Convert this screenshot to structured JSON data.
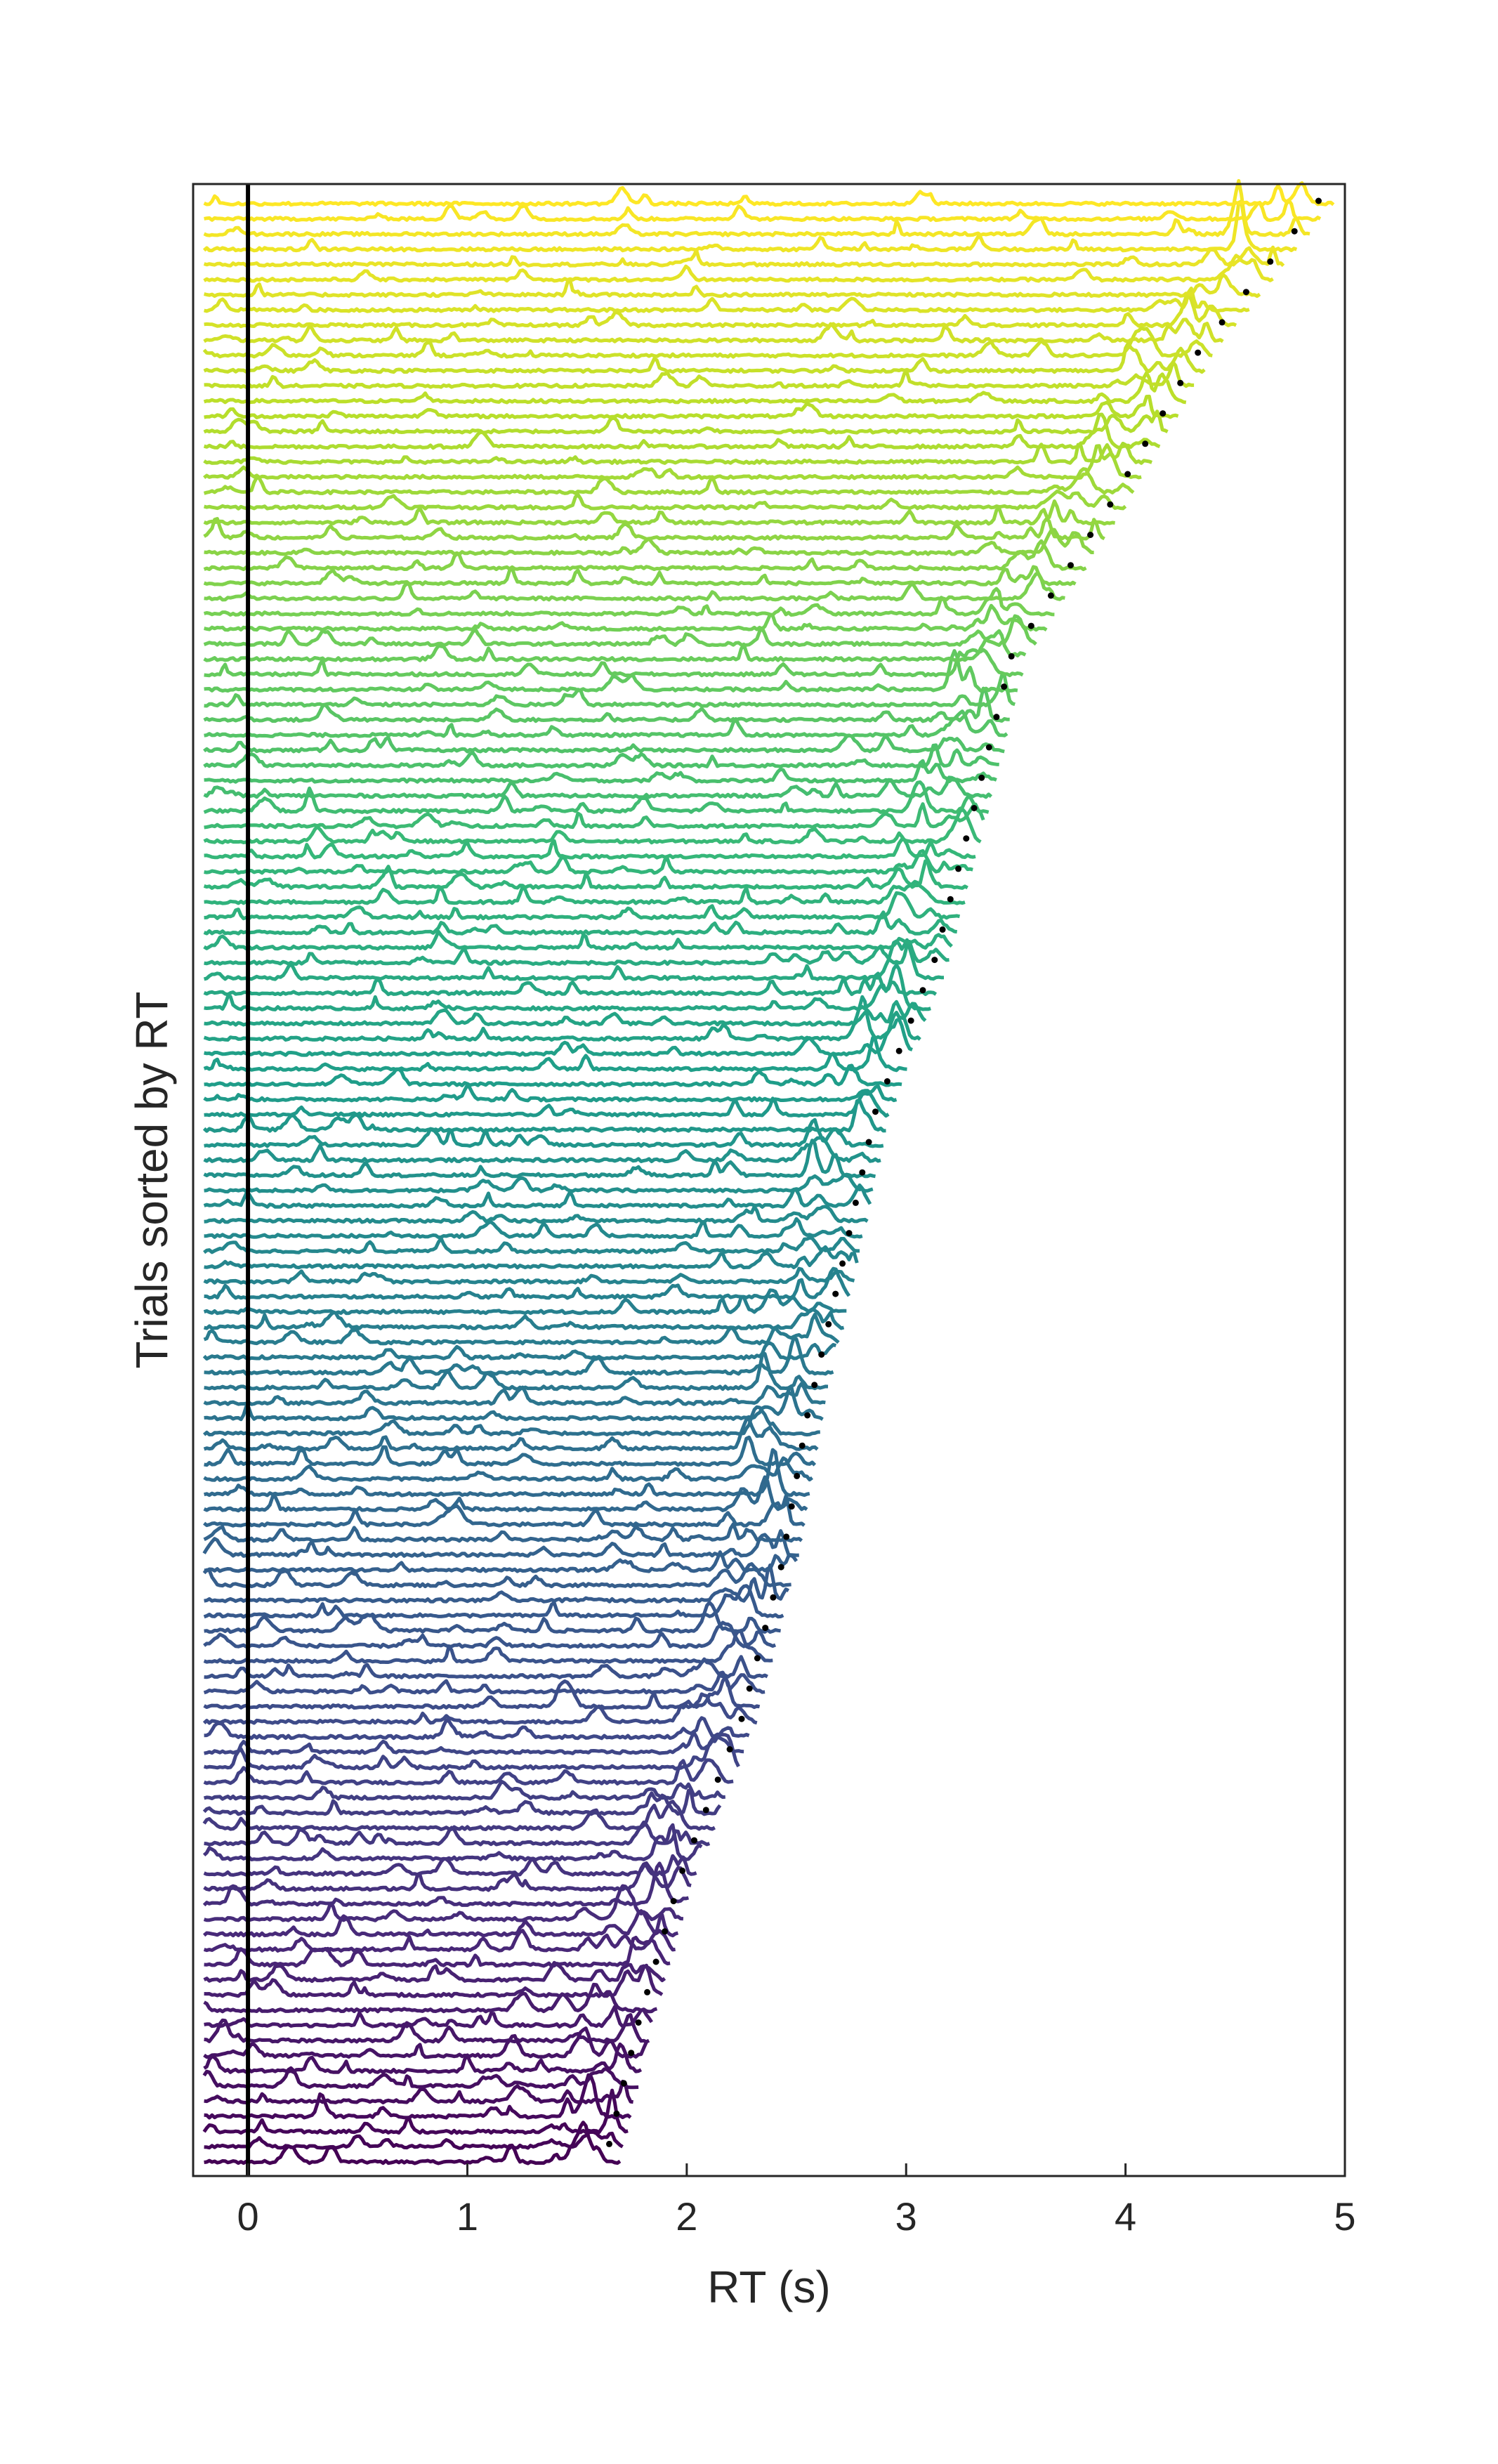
{
  "chart_data": {
    "type": "line",
    "title": "",
    "xlabel": "RT (s)",
    "ylabel": "Trials sorted by RT",
    "xlim": [
      -0.25,
      5
    ],
    "x_ticks": [
      0,
      1,
      2,
      3,
      4,
      5
    ],
    "x_tick_labels": [
      "0",
      "1",
      "2",
      "3",
      "4",
      "5"
    ],
    "y_ticks": [],
    "grid": false,
    "legend": "none",
    "stacked_traces": true,
    "n_trials": 130,
    "trace_start_x": -0.2,
    "rt_min": 1.7,
    "rt_max": 4.95,
    "reference_line_x": 0,
    "reference_line_color": "#000000",
    "rt_marker_color": "#000000",
    "colormap": "viridis",
    "colormap_start": "#440154",
    "colormap_end": "#fde725",
    "trial_rt_anchors": [
      {
        "trial": 1,
        "rt": 1.7
      },
      {
        "trial": 10,
        "rt": 1.85
      },
      {
        "trial": 20,
        "rt": 2.05
      },
      {
        "trial": 30,
        "rt": 2.32
      },
      {
        "trial": 40,
        "rt": 2.5
      },
      {
        "trial": 50,
        "rt": 2.62
      },
      {
        "trial": 60,
        "rt": 2.78
      },
      {
        "trial": 70,
        "rt": 2.93
      },
      {
        "trial": 80,
        "rt": 3.2
      },
      {
        "trial": 90,
        "rt": 3.38
      },
      {
        "trial": 100,
        "rt": 3.55
      },
      {
        "trial": 110,
        "rt": 4.0
      },
      {
        "trial": 120,
        "rt": 4.4
      },
      {
        "trial": 130,
        "rt": 4.95
      }
    ]
  }
}
